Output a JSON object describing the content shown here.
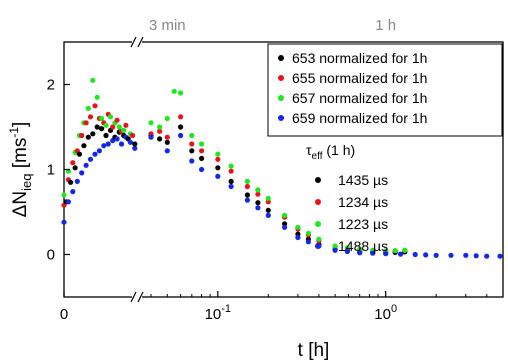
{
  "chart_data": {
    "type": "scatter",
    "title": "",
    "xlabel": "t [h]",
    "ylabel": "ΔN",
    "ylabel_subscript": "ieq",
    "ylabel_unit_open": " [ms",
    "ylabel_unit_sup": "-1",
    "ylabel_unit_close": "]",
    "x_scale": "broken: linear 0–0.033 h, then log 0.033–5 h",
    "xlim": [
      0,
      5
    ],
    "ylim": [
      -0.5,
      2.5
    ],
    "x_ticks": [
      {
        "value": 0,
        "label": "0"
      },
      {
        "value": 0.1,
        "label": "10",
        "sup": "-1"
      },
      {
        "value": 1,
        "label": "10",
        "sup": "0"
      }
    ],
    "top_ticks": [
      {
        "value": 0.05,
        "label": "3 min"
      },
      {
        "value": 1,
        "label": "1 h"
      }
    ],
    "y_ticks": [
      0,
      1,
      2
    ],
    "legend_placement": "top-right",
    "legend_header": "τ",
    "legend_header_sub": "eff",
    "legend_header_suffix": " (1 h)",
    "series": [
      {
        "name": "653 normalized for 1h",
        "tau_label": "1435 µs",
        "color": "#000000"
      },
      {
        "name": "655 normalized for 1h",
        "tau_label": "1234 µs",
        "color": "#e8141c"
      },
      {
        "name": "657 normalized for 1h",
        "tau_label": "1223 µs",
        "color": "#1ee81e"
      },
      {
        "name": "659 normalized for 1h",
        "tau_label": "1488 µs",
        "color": "#1428e8"
      }
    ],
    "linear_segment_points": [
      {
        "series": 3,
        "x": 0.0,
        "y": 0.38
      },
      {
        "series": 1,
        "x": 0.0,
        "y": 0.58
      },
      {
        "series": 2,
        "x": 0.0,
        "y": 0.7
      },
      {
        "series": 0,
        "x": 0.001,
        "y": 0.62
      },
      {
        "series": 3,
        "x": 0.002,
        "y": 0.62
      },
      {
        "series": 1,
        "x": 0.002,
        "y": 0.88
      },
      {
        "series": 2,
        "x": 0.002,
        "y": 0.98
      },
      {
        "series": 0,
        "x": 0.003,
        "y": 0.85
      },
      {
        "series": 3,
        "x": 0.004,
        "y": 0.74
      },
      {
        "series": 1,
        "x": 0.004,
        "y": 1.08
      },
      {
        "series": 0,
        "x": 0.005,
        "y": 1.02
      },
      {
        "series": 2,
        "x": 0.005,
        "y": 1.2
      },
      {
        "series": 3,
        "x": 0.006,
        "y": 0.86
      },
      {
        "series": 1,
        "x": 0.006,
        "y": 1.22
      },
      {
        "series": 0,
        "x": 0.007,
        "y": 1.18
      },
      {
        "series": 2,
        "x": 0.007,
        "y": 1.4
      },
      {
        "series": 3,
        "x": 0.008,
        "y": 0.96
      },
      {
        "series": 1,
        "x": 0.008,
        "y": 1.4
      },
      {
        "series": 0,
        "x": 0.009,
        "y": 1.28
      },
      {
        "series": 2,
        "x": 0.009,
        "y": 1.55
      },
      {
        "series": 3,
        "x": 0.01,
        "y": 1.05
      },
      {
        "series": 1,
        "x": 0.01,
        "y": 1.55
      },
      {
        "series": 0,
        "x": 0.011,
        "y": 1.38
      },
      {
        "series": 2,
        "x": 0.011,
        "y": 1.72
      },
      {
        "series": 3,
        "x": 0.012,
        "y": 1.12
      },
      {
        "series": 1,
        "x": 0.012,
        "y": 1.62
      },
      {
        "series": 0,
        "x": 0.013,
        "y": 1.42
      },
      {
        "series": 2,
        "x": 0.013,
        "y": 2.05
      },
      {
        "series": 1,
        "x": 0.014,
        "y": 1.75
      },
      {
        "series": 3,
        "x": 0.014,
        "y": 1.18
      },
      {
        "series": 0,
        "x": 0.015,
        "y": 1.5
      },
      {
        "series": 2,
        "x": 0.015,
        "y": 1.85
      },
      {
        "series": 3,
        "x": 0.016,
        "y": 1.22
      },
      {
        "series": 1,
        "x": 0.016,
        "y": 1.6
      },
      {
        "series": 0,
        "x": 0.017,
        "y": 1.48
      },
      {
        "series": 2,
        "x": 0.017,
        "y": 1.6
      },
      {
        "series": 3,
        "x": 0.018,
        "y": 1.28
      },
      {
        "series": 1,
        "x": 0.018,
        "y": 1.55
      },
      {
        "series": 0,
        "x": 0.019,
        "y": 1.4
      },
      {
        "series": 2,
        "x": 0.019,
        "y": 1.52
      },
      {
        "series": 3,
        "x": 0.02,
        "y": 1.3
      },
      {
        "series": 1,
        "x": 0.02,
        "y": 1.65
      },
      {
        "series": 0,
        "x": 0.021,
        "y": 1.46
      },
      {
        "series": 2,
        "x": 0.021,
        "y": 1.62
      },
      {
        "series": 3,
        "x": 0.022,
        "y": 1.34
      },
      {
        "series": 1,
        "x": 0.022,
        "y": 1.5
      },
      {
        "series": 0,
        "x": 0.023,
        "y": 1.38
      },
      {
        "series": 2,
        "x": 0.023,
        "y": 1.55
      },
      {
        "series": 3,
        "x": 0.024,
        "y": 1.36
      },
      {
        "series": 1,
        "x": 0.024,
        "y": 1.58
      },
      {
        "series": 0,
        "x": 0.025,
        "y": 1.44
      },
      {
        "series": 2,
        "x": 0.025,
        "y": 1.5
      },
      {
        "series": 3,
        "x": 0.026,
        "y": 1.3
      },
      {
        "series": 1,
        "x": 0.026,
        "y": 1.45
      },
      {
        "series": 0,
        "x": 0.027,
        "y": 1.4
      },
      {
        "series": 2,
        "x": 0.027,
        "y": 1.46
      },
      {
        "series": 3,
        "x": 0.028,
        "y": 1.38
      },
      {
        "series": 1,
        "x": 0.028,
        "y": 1.52
      },
      {
        "series": 0,
        "x": 0.029,
        "y": 1.36
      },
      {
        "series": 3,
        "x": 0.03,
        "y": 1.32
      },
      {
        "series": 2,
        "x": 0.03,
        "y": 1.42
      },
      {
        "series": 1,
        "x": 0.031,
        "y": 1.4
      },
      {
        "series": 3,
        "x": 0.032,
        "y": 1.25
      },
      {
        "series": 0,
        "x": 0.032,
        "y": 1.3
      }
    ],
    "log_segment_series": [
      {
        "name": "653 normalized for 1h",
        "x": [
          0.04,
          0.045,
          0.05,
          0.06,
          0.07,
          0.08,
          0.1,
          0.12,
          0.15,
          0.2,
          0.25,
          0.3,
          0.4,
          0.5,
          0.7,
          1.0,
          1.3
        ],
        "y": [
          1.4,
          1.36,
          1.32,
          1.5,
          1.22,
          1.13,
          1.02,
          0.86,
          0.7,
          0.52,
          0.36,
          0.24,
          0.12,
          0.06,
          0.03,
          0.02,
          0.03
        ]
      },
      {
        "name": "655 normalized for 1h",
        "x": [
          0.04,
          0.045,
          0.05,
          0.06,
          0.07,
          0.08,
          0.1,
          0.12,
          0.15,
          0.2,
          0.25,
          0.3,
          0.4,
          0.5,
          0.7,
          1.0,
          1.3
        ],
        "y": [
          1.42,
          1.45,
          1.38,
          1.62,
          1.3,
          1.22,
          1.12,
          0.98,
          0.8,
          0.62,
          0.44,
          0.3,
          0.16,
          0.09,
          0.05,
          0.04,
          0.05
        ]
      },
      {
        "name": "657 normalized for 1h",
        "x": [
          0.04,
          0.045,
          0.05,
          0.055,
          0.06,
          0.07,
          0.08,
          0.1,
          0.12,
          0.15,
          0.2,
          0.25,
          0.3,
          0.4,
          0.5,
          0.7,
          1.0,
          1.3
        ],
        "y": [
          1.55,
          1.5,
          1.6,
          1.92,
          1.9,
          1.4,
          1.3,
          1.18,
          1.04,
          0.86,
          0.66,
          0.46,
          0.32,
          0.18,
          0.1,
          0.06,
          0.04,
          0.05
        ]
      },
      {
        "name": "659 normalized for 1h",
        "x": [
          0.04,
          0.05,
          0.06,
          0.07,
          0.08,
          0.1,
          0.12,
          0.15,
          0.2,
          0.25,
          0.3,
          0.4,
          0.5,
          0.7,
          1.0,
          1.5,
          2.0,
          3.0,
          4.0,
          4.8
        ],
        "y": [
          1.38,
          1.22,
          1.4,
          1.1,
          1.0,
          0.92,
          0.8,
          0.64,
          0.46,
          0.32,
          0.2,
          0.1,
          0.05,
          0.02,
          0.01,
          0.0,
          -0.01,
          -0.01,
          -0.02,
          -0.02
        ]
      }
    ]
  }
}
